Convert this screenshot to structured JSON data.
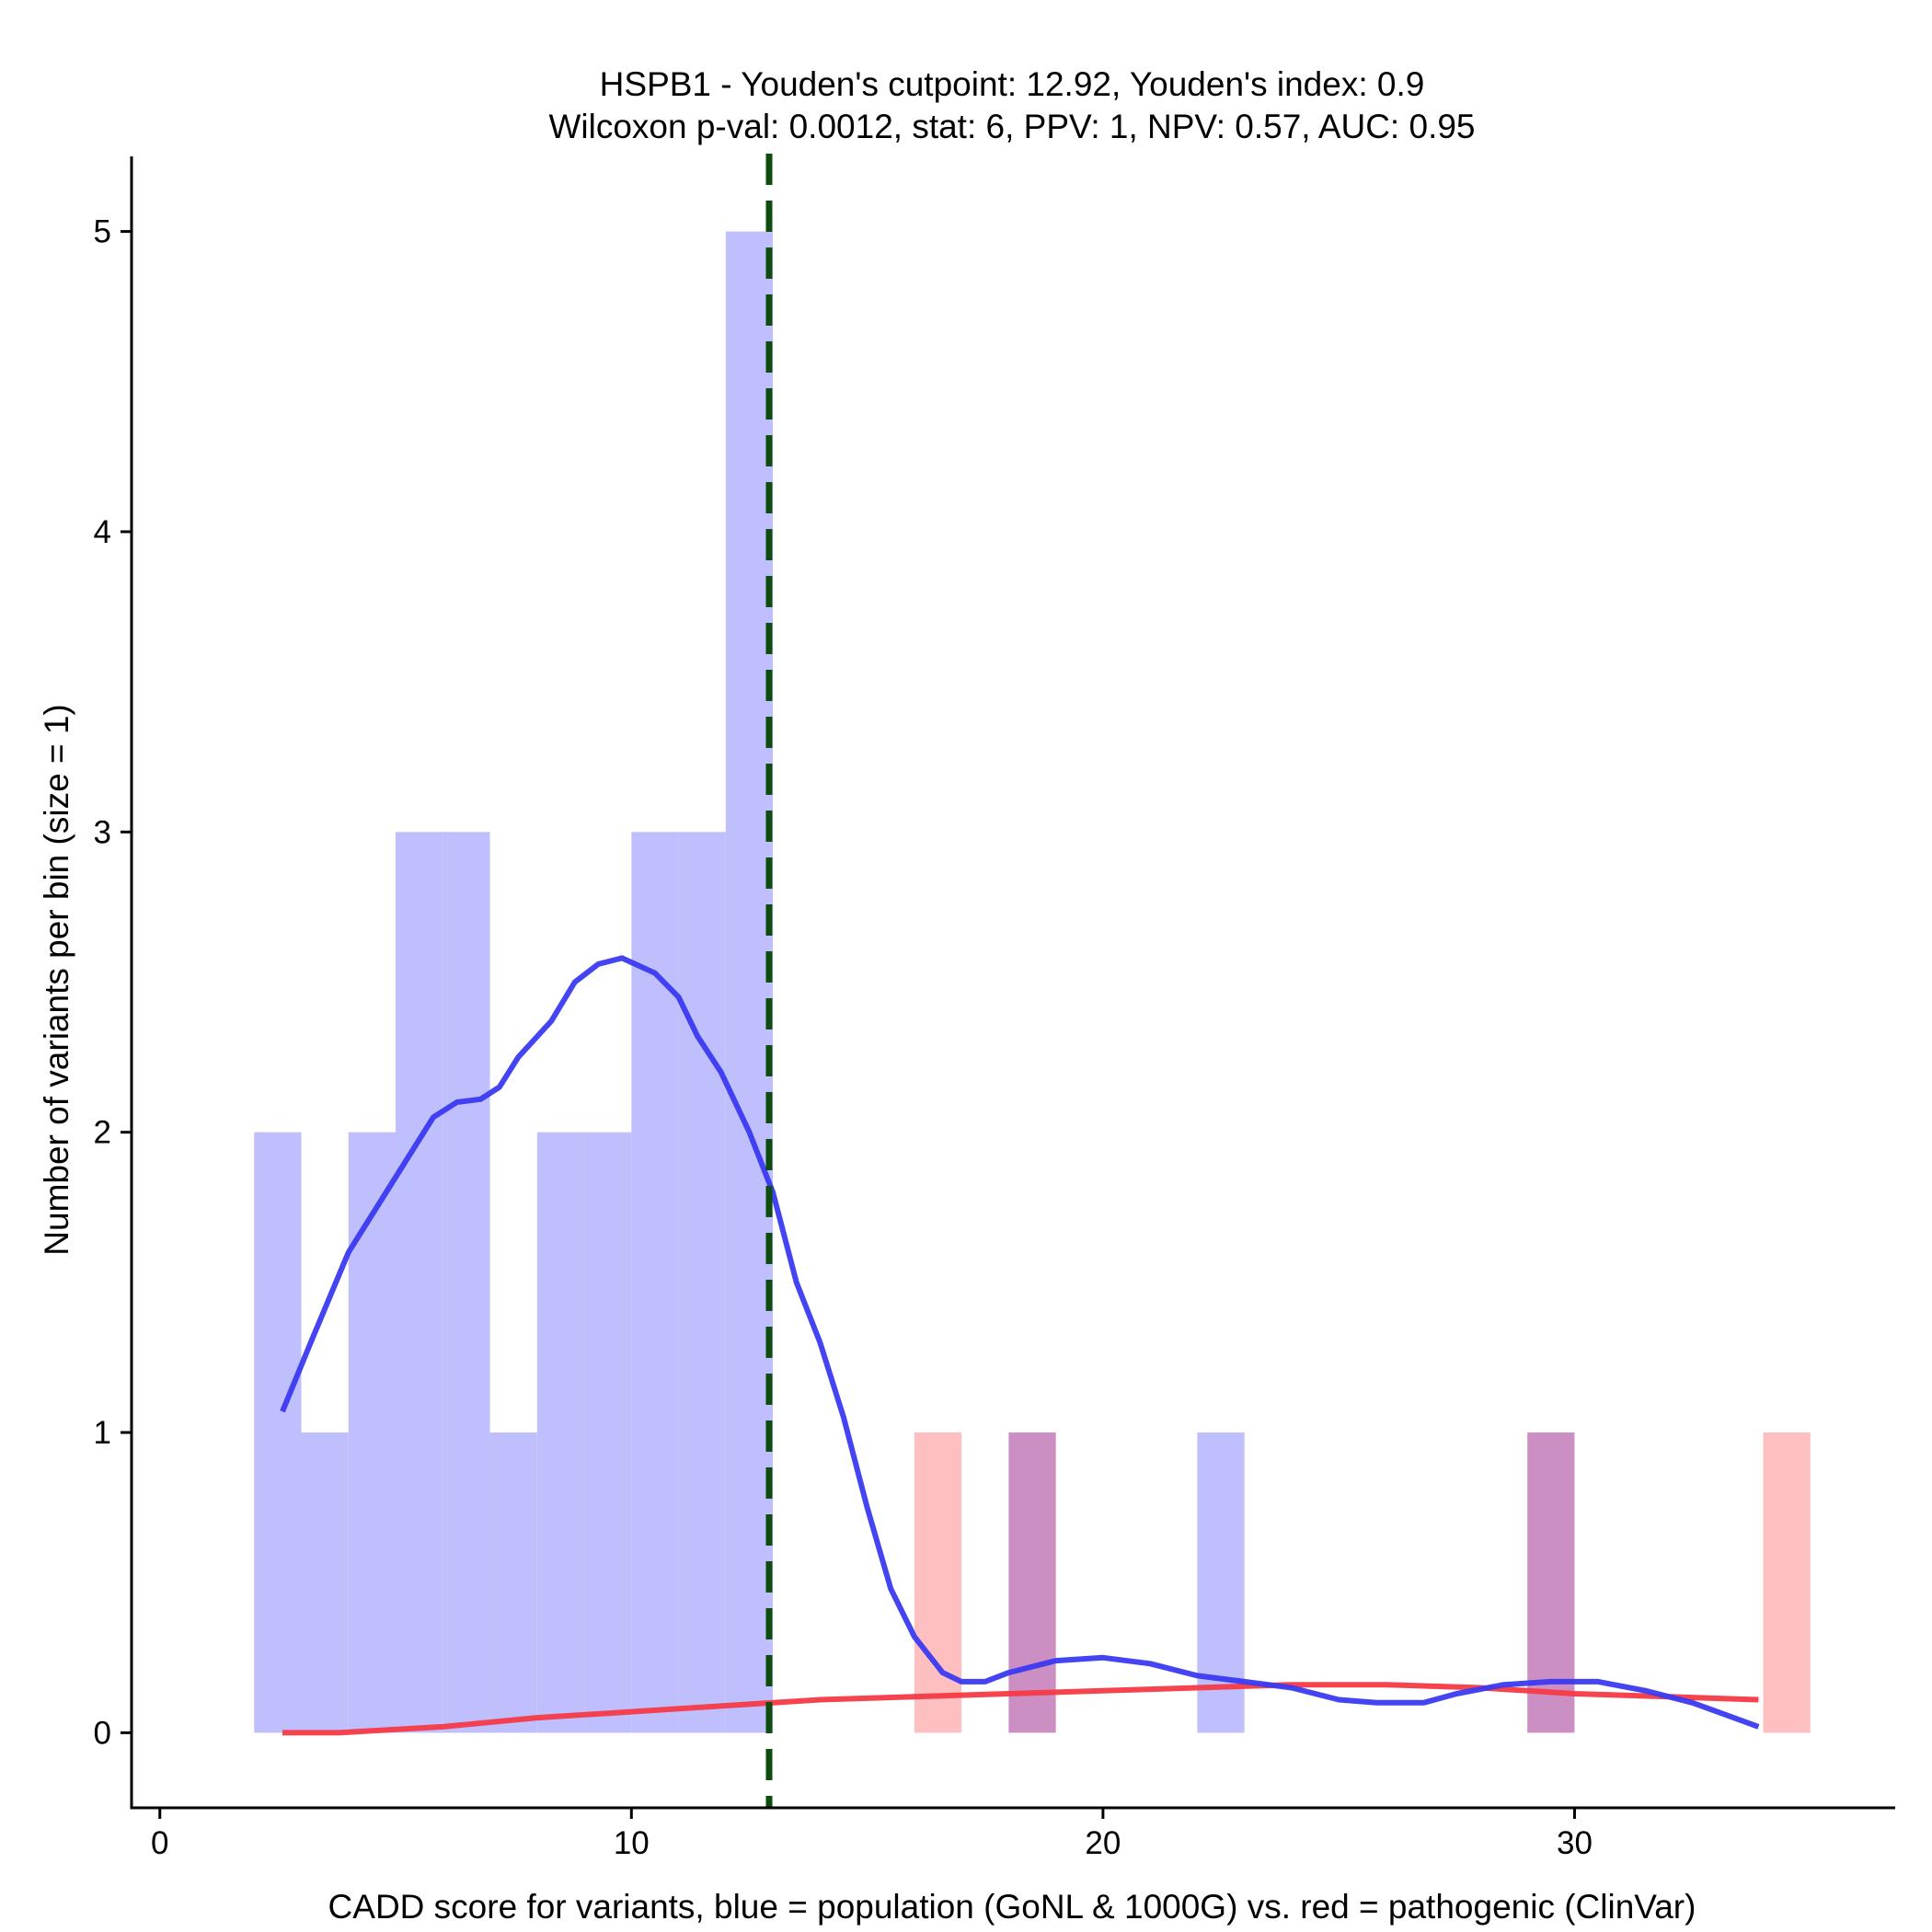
{
  "chart_data": {
    "type": "histogram+density",
    "title_line1": "HSPB1 - Youden's cutpoint: 12.92, Youden's index: 0.9",
    "title_line2": "Wilcoxon p-val: 0.0012, stat: 6, PPV: 1, NPV: 0.57, AUC: 0.95",
    "xlabel": "CADD score for variants, blue = population (GoNL & 1000G) vs. red = pathogenic (ClinVar)",
    "ylabel": "Number of variants per bin (size = 1)",
    "xlim": [
      -0.6,
      36.8
    ],
    "ylim": [
      -0.25,
      5.25
    ],
    "x_ticks": [
      0,
      10,
      20,
      30
    ],
    "y_ticks": [
      0,
      1,
      2,
      3,
      4,
      5
    ],
    "bin_size": 1,
    "cutpoint": 12.92,
    "colors": {
      "population_bar": "#bfbffd",
      "pathogenic_bar": "#fdbfbf",
      "overlap_bar": "#cc8fc3",
      "population_line": "#3a3af2",
      "pathogenic_line": "#f53a46",
      "cutpoint_line": "#0d4d0d"
    },
    "series": [
      {
        "name": "population (GoNL & 1000G)",
        "bins": [
          {
            "start": 2,
            "count": 2
          },
          {
            "start": 3,
            "count": 1
          },
          {
            "start": 4,
            "count": 2
          },
          {
            "start": 5,
            "count": 3
          },
          {
            "start": 6,
            "count": 3
          },
          {
            "start": 7,
            "count": 1
          },
          {
            "start": 8,
            "count": 2
          },
          {
            "start": 9,
            "count": 2
          },
          {
            "start": 10,
            "count": 3
          },
          {
            "start": 11,
            "count": 3
          },
          {
            "start": 12,
            "count": 5
          },
          {
            "start": 18,
            "count": 1
          },
          {
            "start": 22,
            "count": 1
          },
          {
            "start": 29,
            "count": 1
          }
        ],
        "density": [
          [
            2.6,
            1.07
          ],
          [
            3.2,
            1.3
          ],
          [
            4.0,
            1.6
          ],
          [
            5.0,
            1.85
          ],
          [
            5.8,
            2.05
          ],
          [
            6.3,
            2.1
          ],
          [
            6.8,
            2.11
          ],
          [
            7.2,
            2.15
          ],
          [
            7.6,
            2.25
          ],
          [
            8.3,
            2.37
          ],
          [
            8.8,
            2.5
          ],
          [
            9.3,
            2.56
          ],
          [
            9.8,
            2.58
          ],
          [
            10.5,
            2.53
          ],
          [
            11.0,
            2.45
          ],
          [
            11.4,
            2.32
          ],
          [
            11.9,
            2.2
          ],
          [
            12.5,
            2.0
          ],
          [
            13.0,
            1.8
          ],
          [
            13.5,
            1.5
          ],
          [
            14.0,
            1.3
          ],
          [
            14.5,
            1.05
          ],
          [
            15.0,
            0.75
          ],
          [
            15.5,
            0.48
          ],
          [
            16.0,
            0.32
          ],
          [
            16.6,
            0.2
          ],
          [
            17.0,
            0.17
          ],
          [
            17.5,
            0.17
          ],
          [
            18.0,
            0.2
          ],
          [
            19.0,
            0.24
          ],
          [
            20.0,
            0.25
          ],
          [
            21.0,
            0.23
          ],
          [
            22.0,
            0.19
          ],
          [
            23.0,
            0.17
          ],
          [
            24.0,
            0.15
          ],
          [
            25.0,
            0.11
          ],
          [
            25.8,
            0.1
          ],
          [
            26.8,
            0.1
          ],
          [
            27.5,
            0.13
          ],
          [
            28.5,
            0.16
          ],
          [
            29.5,
            0.17
          ],
          [
            30.5,
            0.17
          ],
          [
            31.5,
            0.14
          ],
          [
            32.5,
            0.1
          ],
          [
            33.2,
            0.06
          ],
          [
            33.9,
            0.02
          ]
        ]
      },
      {
        "name": "pathogenic (ClinVar)",
        "bins": [
          {
            "start": 16,
            "count": 1
          },
          {
            "start": 18,
            "count": 1
          },
          {
            "start": 29,
            "count": 1
          },
          {
            "start": 34,
            "count": 1
          }
        ],
        "density": [
          [
            2.6,
            0.0
          ],
          [
            3.8,
            0.0
          ],
          [
            6.0,
            0.02
          ],
          [
            8.0,
            0.05
          ],
          [
            10.0,
            0.07
          ],
          [
            12.0,
            0.09
          ],
          [
            14.0,
            0.11
          ],
          [
            16.0,
            0.12
          ],
          [
            18.0,
            0.13
          ],
          [
            20.0,
            0.14
          ],
          [
            22.0,
            0.15
          ],
          [
            24.0,
            0.16
          ],
          [
            26.0,
            0.16
          ],
          [
            28.0,
            0.15
          ],
          [
            30.0,
            0.13
          ],
          [
            32.0,
            0.12
          ],
          [
            33.9,
            0.11
          ]
        ]
      }
    ]
  }
}
